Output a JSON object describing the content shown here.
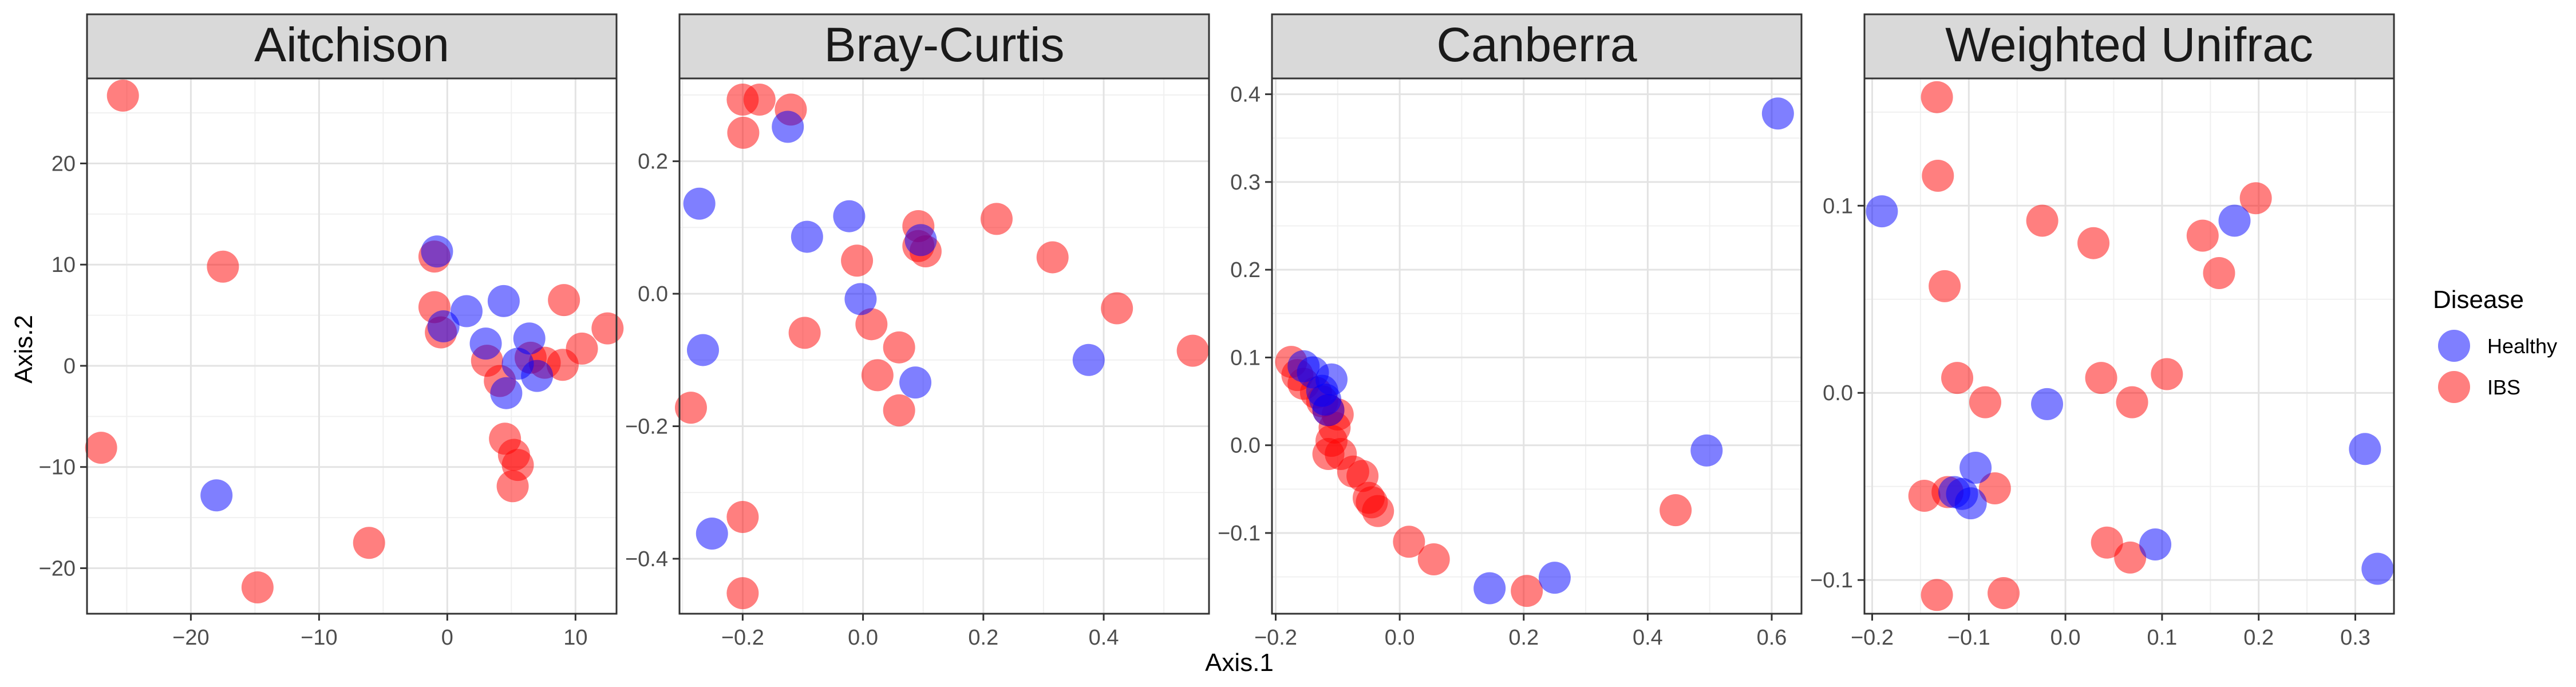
{
  "chart_data": {
    "type": "scatter",
    "xlabel": "Axis.1",
    "ylabel": "Axis.2",
    "grid": true,
    "legend": {
      "title": "Disease",
      "placement": "right",
      "entries": [
        {
          "name": "Healthy",
          "color": "#0000ff"
        },
        {
          "name": "IBS",
          "color": "#ff0000"
        }
      ]
    },
    "point_opacity": 0.5,
    "panels": [
      {
        "title": "Aitchison",
        "xlim": [
          -28.1,
          13.2
        ],
        "ylim": [
          -24.5,
          28.4
        ],
        "xticks": [
          -20,
          -10,
          0,
          10
        ],
        "yticks": [
          -20,
          -10,
          0,
          10,
          20
        ],
        "xtick_labels": [
          "−20",
          "−10",
          "0",
          "10"
        ],
        "ytick_labels": [
          "−20",
          "−10",
          "0",
          "10",
          "20"
        ],
        "series": [
          {
            "name": "IBS",
            "points": [
              [
                -25.3,
                26.7
              ],
              [
                -27.0,
                -8.1
              ],
              [
                -17.5,
                9.8
              ],
              [
                -14.8,
                -21.9
              ],
              [
                -6.1,
                -17.5
              ],
              [
                -1.0,
                10.8
              ],
              [
                -1.0,
                5.8
              ],
              [
                -0.5,
                3.3
              ],
              [
                3.1,
                0.5
              ],
              [
                4.1,
                -1.5
              ],
              [
                4.5,
                -7.2
              ],
              [
                5.2,
                -8.8
              ],
              [
                5.5,
                -9.8
              ],
              [
                5.1,
                -11.9
              ],
              [
                6.5,
                0.8
              ],
              [
                7.6,
                0.3
              ],
              [
                9.0,
                0.1
              ],
              [
                9.1,
                6.5
              ],
              [
                10.5,
                1.7
              ],
              [
                12.5,
                3.7
              ]
            ]
          },
          {
            "name": "Healthy",
            "points": [
              [
                -18.0,
                -12.8
              ],
              [
                -0.8,
                11.3
              ],
              [
                -0.3,
                3.9
              ],
              [
                1.5,
                5.4
              ],
              [
                3.0,
                2.2
              ],
              [
                4.4,
                6.4
              ],
              [
                4.6,
                -2.7
              ],
              [
                5.5,
                0.2
              ],
              [
                6.4,
                2.7
              ],
              [
                7.0,
                -1.0
              ]
            ]
          }
        ]
      },
      {
        "title": "Bray-Curtis",
        "xlim": [
          -0.305,
          0.575
        ],
        "ylim": [
          -0.483,
          0.325
        ],
        "xticks": [
          -0.2,
          0.0,
          0.2,
          0.4
        ],
        "yticks": [
          -0.4,
          -0.2,
          0.0,
          0.2
        ],
        "xtick_labels": [
          "−0.2",
          "0.0",
          "0.2",
          "0.4"
        ],
        "ytick_labels": [
          "−0.4",
          "−0.2",
          "0.0",
          "0.2"
        ],
        "series": [
          {
            "name": "IBS",
            "points": [
              [
                -0.2,
                0.293
              ],
              [
                -0.172,
                0.293
              ],
              [
                -0.12,
                0.278
              ],
              [
                -0.199,
                0.243
              ],
              [
                -0.286,
                -0.172
              ],
              [
                -0.2,
                -0.337
              ],
              [
                -0.2,
                -0.452
              ],
              [
                -0.097,
                -0.059
              ],
              [
                -0.01,
                0.05
              ],
              [
                0.014,
                -0.046
              ],
              [
                0.024,
                -0.123
              ],
              [
                0.06,
                -0.081
              ],
              [
                0.06,
                -0.176
              ],
              [
                0.092,
                0.102
              ],
              [
                0.092,
                0.072
              ],
              [
                0.104,
                0.064
              ],
              [
                0.222,
                0.113
              ],
              [
                0.315,
                0.055
              ],
              [
                0.422,
                -0.022
              ],
              [
                0.548,
                -0.086
              ]
            ]
          },
          {
            "name": "Healthy",
            "points": [
              [
                -0.125,
                0.252
              ],
              [
                -0.272,
                0.136
              ],
              [
                -0.266,
                -0.085
              ],
              [
                -0.251,
                -0.362
              ],
              [
                -0.093,
                0.086
              ],
              [
                -0.023,
                0.117
              ],
              [
                -0.004,
                -0.008
              ],
              [
                0.087,
                -0.134
              ],
              [
                0.096,
                0.081
              ],
              [
                0.375,
                -0.1
              ]
            ]
          }
        ]
      },
      {
        "title": "Canberra",
        "xlim": [
          -0.206,
          0.648
        ],
        "ylim": [
          -0.192,
          0.418
        ],
        "xticks": [
          -0.2,
          0.0,
          0.2,
          0.4,
          0.6
        ],
        "yticks": [
          -0.1,
          0.0,
          0.1,
          0.2,
          0.3,
          0.4
        ],
        "xtick_labels": [
          "−0.2",
          "0.0",
          "0.2",
          "0.4",
          "0.6"
        ],
        "ytick_labels": [
          "−0.1",
          "0.0",
          "0.1",
          "0.2",
          "0.3",
          "0.4"
        ],
        "series": [
          {
            "name": "IBS",
            "points": [
              [
                -0.175,
                0.095
              ],
              [
                -0.165,
                0.08
              ],
              [
                -0.155,
                0.07
              ],
              [
                -0.135,
                0.06
              ],
              [
                -0.125,
                0.05
              ],
              [
                -0.115,
                0.04
              ],
              [
                -0.1,
                0.035
              ],
              [
                -0.105,
                0.02
              ],
              [
                -0.11,
                0.005
              ],
              [
                -0.115,
                -0.01
              ],
              [
                -0.095,
                -0.01
              ],
              [
                -0.075,
                -0.03
              ],
              [
                -0.06,
                -0.035
              ],
              [
                -0.05,
                -0.06
              ],
              [
                -0.045,
                -0.065
              ],
              [
                -0.035,
                -0.075
              ],
              [
                0.015,
                -0.11
              ],
              [
                0.055,
                -0.13
              ],
              [
                0.205,
                -0.166
              ],
              [
                0.445,
                -0.074
              ]
            ]
          },
          {
            "name": "Healthy",
            "points": [
              [
                -0.155,
                0.09
              ],
              [
                -0.14,
                0.083
              ],
              [
                -0.125,
                0.062
              ],
              [
                -0.12,
                0.052
              ],
              [
                -0.11,
                0.075
              ],
              [
                -0.115,
                0.04
              ],
              [
                0.145,
                -0.163
              ],
              [
                0.25,
                -0.151
              ],
              [
                0.495,
                -0.006
              ],
              [
                0.61,
                0.378
              ]
            ]
          }
        ]
      },
      {
        "title": "Weighted Unifrac",
        "xlim": [
          -0.208,
          0.34
        ],
        "ylim": [
          -0.118,
          0.168
        ],
        "xticks": [
          -0.2,
          -0.1,
          0.0,
          0.1,
          0.2,
          0.3
        ],
        "yticks": [
          -0.1,
          0.0,
          0.1
        ],
        "xtick_labels": [
          "−0.2",
          "−0.1",
          "0.0",
          "0.1",
          "0.2",
          "0.3"
        ],
        "ytick_labels": [
          "−0.1",
          "0.0",
          "0.1"
        ],
        "series": [
          {
            "name": "IBS",
            "points": [
              [
                -0.133,
                0.158
              ],
              [
                -0.132,
                0.116
              ],
              [
                -0.125,
                0.057
              ],
              [
                -0.112,
                0.008
              ],
              [
                -0.083,
                -0.005
              ],
              [
                -0.146,
                -0.055
              ],
              [
                -0.133,
                -0.108
              ],
              [
                -0.122,
                -0.053
              ],
              [
                -0.073,
                -0.051
              ],
              [
                -0.064,
                -0.107
              ],
              [
                -0.024,
                0.092
              ],
              [
                0.029,
                0.08
              ],
              [
                0.037,
                0.008
              ],
              [
                0.043,
                -0.08
              ],
              [
                0.067,
                -0.088
              ],
              [
                0.069,
                -0.005
              ],
              [
                0.105,
                0.01
              ],
              [
                0.142,
                0.084
              ],
              [
                0.159,
                0.064
              ],
              [
                0.197,
                0.104
              ]
            ]
          },
          {
            "name": "Healthy",
            "points": [
              [
                -0.19,
                0.097
              ],
              [
                -0.115,
                -0.053
              ],
              [
                -0.107,
                -0.054
              ],
              [
                -0.098,
                -0.059
              ],
              [
                -0.093,
                -0.04
              ],
              [
                -0.019,
                -0.006
              ],
              [
                0.093,
                -0.081
              ],
              [
                0.175,
                0.092
              ],
              [
                0.31,
                -0.03
              ],
              [
                0.323,
                -0.094
              ]
            ]
          }
        ]
      }
    ]
  }
}
